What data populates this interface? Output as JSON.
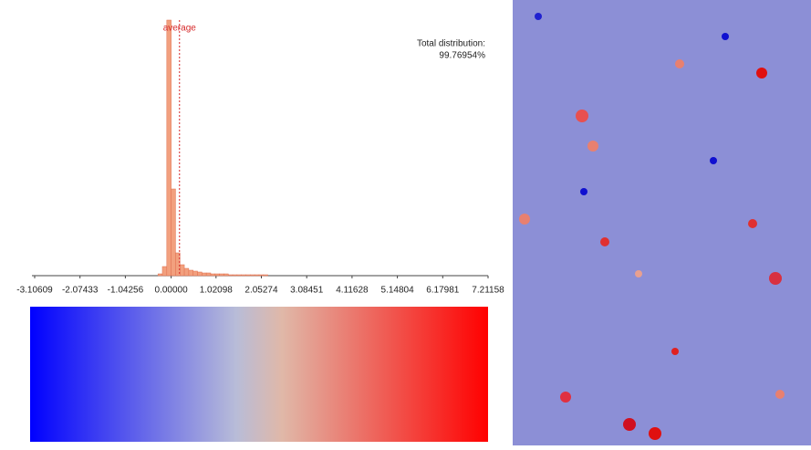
{
  "chart_data": {
    "type": "histogram",
    "bins": [
      -0.3,
      -0.2,
      -0.1,
      0.0,
      0.1,
      0.2,
      0.3,
      0.4,
      0.5,
      0.6,
      0.7,
      0.8,
      0.9,
      1.0,
      1.1,
      1.2,
      1.3,
      1.4,
      1.5,
      1.6,
      1.7,
      1.8,
      1.9,
      2.0,
      2.1,
      2.2
    ],
    "values": [
      2,
      10,
      280,
      95,
      25,
      12,
      8,
      6,
      5,
      4,
      3,
      3,
      2,
      2,
      2,
      2,
      1,
      1,
      1,
      1,
      1,
      1,
      1,
      1,
      1
    ],
    "color": "#f2a07e",
    "xlim": [
      -3.10609,
      7.21158
    ],
    "xticks": [
      -3.10609,
      -2.07433,
      -1.04256,
      {
        "value": 0,
        "label": "0.00000"
      },
      1.02098,
      2.05274,
      3.08451,
      4.11628,
      5.14804,
      6.17981,
      7.21158
    ],
    "annotations": [
      {
        "text": "average",
        "x": 0.19,
        "color": "#d62728"
      },
      {
        "text": "Total distribution:"
      },
      {
        "text": "99.76954%"
      }
    ]
  }
}
